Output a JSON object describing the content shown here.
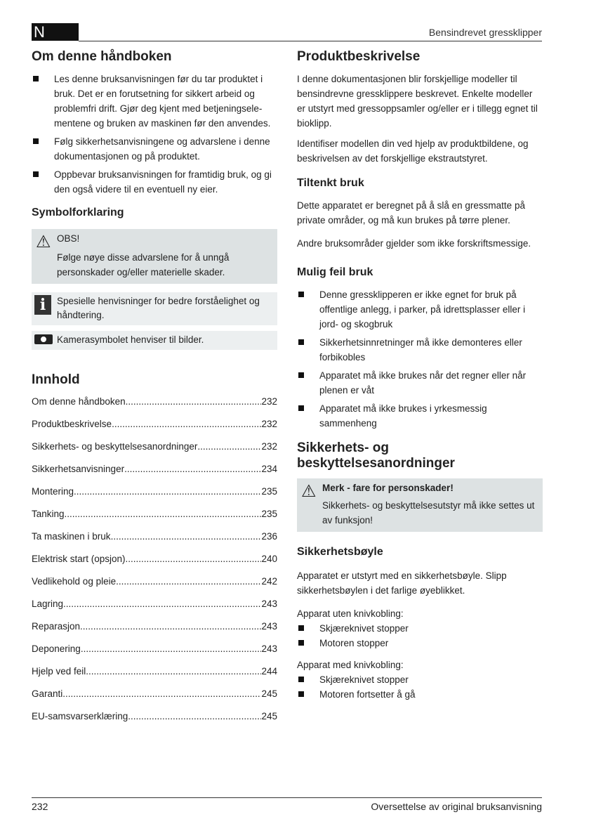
{
  "header": {
    "lang": "N",
    "title": "Bensindrevet gressklipper"
  },
  "footer": {
    "page": "232",
    "title": "Oversettelse av original bruksanvisning"
  },
  "left": {
    "about": {
      "title": "Om denne håndboken",
      "bullets": [
        "Les denne bruksanvisningen før du tar produktet i bruk. Det er en forutsetning for sikkert arbeid og problemfri drift. Gjør deg kjent med betjeningsele-mentene og bruken av maskinen før den anvendes.",
        "Følg sikkerhetsanvisningene og advarslene i denne dokumentasjonen og på produktet.",
        "Oppbevar bruksanvisningen for framtidig bruk, og gi den også videre til en eventuell ny eier."
      ]
    },
    "symbols": {
      "title": "Symbolforklaring",
      "warn_title": "OBS!",
      "warn_text": "Følge nøye disse advarslene for å unngå personskader og/eller materielle skader.",
      "info_icon": "i",
      "info_text": "Spesielle henvisninger for bedre forståelighet og håndtering.",
      "camera_text": "Kamerasymbolet henviser til bilder."
    },
    "toc": {
      "title": "Innhold",
      "items": [
        {
          "t": "Om denne håndboken",
          "p": "232"
        },
        {
          "t": "Produktbeskrivelse",
          "p": "232"
        },
        {
          "t": "Sikkerhets- og beskyttelsesanordninger",
          "p": "232"
        },
        {
          "t": "Sikkerhetsanvisninger",
          "p": "234"
        },
        {
          "t": "Montering",
          "p": "235"
        },
        {
          "t": "Tanking",
          "p": "235"
        },
        {
          "t": "Ta maskinen i bruk",
          "p": "236"
        },
        {
          "t": "Elektrisk start (opsjon)",
          "p": "240"
        },
        {
          "t": "Vedlikehold og pleie",
          "p": "242"
        },
        {
          "t": "Lagring",
          "p": "243"
        },
        {
          "t": "Reparasjon",
          "p": "243"
        },
        {
          "t": "Deponering",
          "p": "243"
        },
        {
          "t": "Hjelp ved feil",
          "p": "244"
        },
        {
          "t": "Garanti",
          "p": "245"
        },
        {
          "t": "EU-samsvarserklæring",
          "p": "245"
        }
      ]
    }
  },
  "right": {
    "product": {
      "title": "Produktbeskrivelse",
      "p1": "I denne dokumentasjonen blir forskjellige modeller til bensindrevne gressklippere beskrevet. Enkelte modeller er utstyrt med gressoppsamler og/eller er i tillegg egnet til bioklipp.",
      "p2": "Identifiser modellen din ved hjelp av produktbildene, og beskrivelsen av det forskjellige ekstrautstyret."
    },
    "intended": {
      "title": "Tiltenkt bruk",
      "p1": "Dette apparatet er beregnet på å slå en gressmatte på private områder, og må kun brukes på tørre plener.",
      "p2": "Andre bruksområder gjelder som ikke forskriftsmessige."
    },
    "misuse": {
      "title": "Mulig feil bruk",
      "bullets": [
        "Denne gressklipperen er ikke egnet for bruk på offentlige anlegg, i parker, på idrettsplasser eller i jord- og skogbruk",
        "Sikkerhetsinnretninger må ikke demonteres eller forbikobles",
        "Apparatet må ikke brukes når det regner eller når plenen er våt",
        "Apparatet må ikke brukes i yrkesmessig sammenheng"
      ]
    },
    "safety": {
      "title": "Sikkerhets- og beskyttelsesanordninger",
      "warn_title": "Merk - fare for personskader!",
      "warn_text": "Sikkerhets- og beskyttelsesutstyr må ikke settes ut av funksjon!"
    },
    "bar": {
      "title": "Sikkerhetsbøyle",
      "p1": "Apparatet er utstyrt med en sikkerhetsbøyle. Slipp sikkerhetsbøylen i det farlige øyeblikket.",
      "without": "Apparat uten knivkobling:",
      "without_items": [
        "Skjæreknivet stopper",
        "Motoren stopper"
      ],
      "with": "Apparat med knivkobling:",
      "with_items": [
        "Skjæreknivet stopper",
        "Motoren fortsetter å gå"
      ]
    }
  }
}
